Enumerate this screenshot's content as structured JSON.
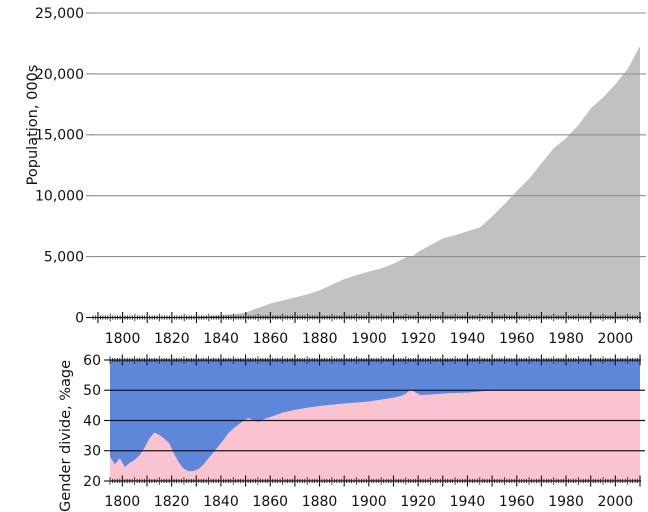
{
  "figure": {
    "description": "Two stacked area charts: total population (000s) and gender divide (% female vs male) from late 1700s to 2010",
    "colors": {
      "population_area": "#c1c1c1",
      "female_area": "#f9c3cf",
      "male_area": "#5f87d9",
      "top_grid": "#8f8f8f",
      "bottom_grid": "#1a1a1a",
      "axis": "#111111",
      "background": "#ffffff"
    }
  },
  "chart_data": [
    {
      "type": "area",
      "name": "population",
      "title": "",
      "ylabel": "Population, 000s",
      "xlabel": "",
      "xlim": [
        1788,
        2010
      ],
      "ylim": [
        0,
        25000
      ],
      "grid": true,
      "legend": "none",
      "yticks": [
        0,
        5000,
        10000,
        15000,
        20000,
        25000
      ],
      "ytick_labels": [
        "0",
        "5,000",
        "10,000",
        "15,000",
        "20,000",
        "25,000"
      ],
      "xtick_labels": [
        1800,
        1820,
        1840,
        1860,
        1880,
        1900,
        1920,
        1940,
        1960,
        1980,
        2000
      ],
      "x_tick_steps": {
        "minor": 1,
        "mid": 5,
        "major": 10
      },
      "area_color": "#c1c1c1",
      "grid_color": "#8f8f8f",
      "x": [
        1788,
        1790,
        1795,
        1800,
        1805,
        1810,
        1815,
        1820,
        1825,
        1830,
        1835,
        1840,
        1845,
        1850,
        1855,
        1860,
        1865,
        1870,
        1875,
        1880,
        1885,
        1890,
        1895,
        1900,
        1905,
        1910,
        1915,
        1918,
        1920,
        1925,
        1930,
        1935,
        1940,
        1945,
        1950,
        1955,
        1960,
        1965,
        1970,
        1975,
        1980,
        1985,
        1990,
        1995,
        2000,
        2005,
        2010
      ],
      "values": [
        1,
        2,
        4,
        5,
        8,
        12,
        17,
        34,
        50,
        70,
        110,
        190,
        280,
        405,
        793,
        1146,
        1400,
        1648,
        1900,
        2232,
        2700,
        3151,
        3491,
        3765,
        4032,
        4425,
        4940,
        5060,
        5411,
        5939,
        6501,
        6756,
        7078,
        7392,
        8307,
        9312,
        10392,
        11388,
        12663,
        13893,
        14726,
        15788,
        17169,
        18072,
        19153,
        20394,
        22300
      ]
    },
    {
      "type": "stacked-area",
      "name": "gender-divide",
      "title": "",
      "ylabel": "Gender divide, %age",
      "xlabel": "",
      "xlim": [
        1795,
        2010
      ],
      "ylim": [
        20,
        60
      ],
      "grid": true,
      "legend": "none",
      "yticks": [
        20,
        30,
        40,
        50,
        60
      ],
      "ytick_labels": [
        "20",
        "30",
        "40",
        "50",
        "60"
      ],
      "grid_levels": [
        30,
        40,
        50
      ],
      "xtick_labels": [
        1800,
        1820,
        1840,
        1860,
        1880,
        1900,
        1920,
        1940,
        1960,
        1980,
        2000
      ],
      "x_tick_steps": {
        "minor": 1,
        "mid": 5,
        "major": 10
      },
      "grid_color": "#1a1a1a",
      "x": [
        1795,
        1797,
        1799,
        1801,
        1803,
        1805,
        1807,
        1809,
        1811,
        1813,
        1815,
        1817,
        1819,
        1821,
        1823,
        1825,
        1827,
        1829,
        1831,
        1833,
        1835,
        1837,
        1839,
        1841,
        1843,
        1845,
        1847,
        1849,
        1851,
        1853,
        1855,
        1858,
        1861,
        1865,
        1870,
        1875,
        1880,
        1885,
        1890,
        1895,
        1900,
        1905,
        1910,
        1913,
        1915,
        1917,
        1919,
        1921,
        1925,
        1930,
        1935,
        1940,
        1945,
        1950,
        1955,
        1960,
        1970,
        1980,
        1990,
        2000,
        2010
      ],
      "series": [
        {
          "name": "female",
          "color": "#f9c3cf",
          "values": [
            28,
            25.5,
            27.5,
            24.6,
            26,
            27,
            28.5,
            31,
            34,
            36,
            35.2,
            34,
            32.5,
            29,
            26,
            24,
            23.2,
            23.3,
            24,
            25.5,
            27.5,
            29.5,
            31.5,
            33.5,
            35.8,
            37.3,
            38.6,
            39.8,
            40.8,
            40.2,
            39.6,
            40.6,
            41.4,
            42.6,
            43.5,
            44.2,
            44.8,
            45.2,
            45.6,
            45.9,
            46.3,
            46.9,
            47.5,
            48.1,
            48.8,
            50.4,
            49.2,
            48.4,
            48.6,
            48.9,
            49.1,
            49.2,
            49.6,
            49.9,
            50.1,
            50.1,
            50.1,
            50.1,
            50.1,
            50.1,
            50.1
          ]
        },
        {
          "name": "male",
          "color": "#5f87d9",
          "values": [
            72,
            74.5,
            72.5,
            75.4,
            74,
            73,
            71.5,
            69,
            66,
            64,
            64.8,
            66,
            67.5,
            71,
            74,
            76,
            76.8,
            76.7,
            76,
            74.5,
            72.5,
            70.5,
            68.5,
            66.5,
            64.2,
            62.7,
            61.4,
            60.2,
            59.2,
            59.8,
            60.4,
            59.4,
            58.6,
            57.4,
            56.5,
            55.8,
            55.2,
            54.8,
            54.4,
            54.1,
            53.7,
            53.1,
            52.5,
            51.9,
            51.2,
            49.6,
            50.8,
            51.6,
            51.4,
            51.1,
            50.9,
            50.8,
            50.4,
            50.1,
            49.9,
            49.9,
            49.9,
            49.9,
            49.9,
            49.9,
            49.9
          ]
        }
      ]
    }
  ]
}
